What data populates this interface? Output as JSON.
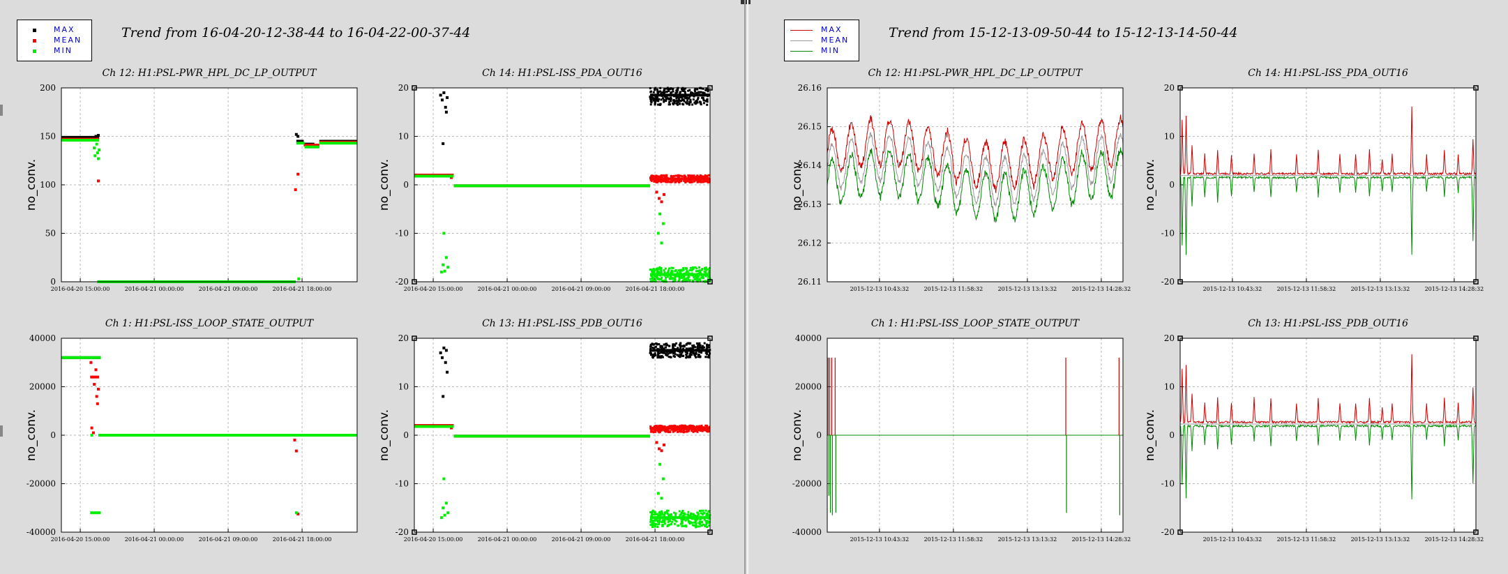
{
  "panels": [
    {
      "trend_title": "Trend from 16-04-20-12-38-44 to 16-04-22-00-37-44",
      "legend_style": "markers",
      "legend": [
        {
          "label": "MAX",
          "color": "#000000"
        },
        {
          "label": "MEAN",
          "color": "#ff0000"
        },
        {
          "label": "MIN",
          "color": "#00ee00"
        }
      ]
    },
    {
      "trend_title": "Trend from 15-12-13-09-50-44 to 15-12-13-14-50-44",
      "legend_style": "lines",
      "legend": [
        {
          "label": "MAX",
          "color": "#cc0000"
        },
        {
          "label": "MEAN",
          "color": "#999999"
        },
        {
          "label": "MIN",
          "color": "#008800"
        }
      ]
    }
  ],
  "chart_data": [
    {
      "panel": 0,
      "type": "scatter",
      "title": "Ch 12: H1:PSL-PWR_HPL_DC_LP_OUTPUT",
      "ylabel": "no_conv.",
      "ylim": [
        0,
        200
      ],
      "yticks": [
        "0",
        "50",
        "100",
        "150",
        "200"
      ],
      "xlim": [
        0,
        36
      ],
      "xticks": [
        "2016-04-20 15:00:00",
        "2016-04-21 00:00:00",
        "2016-04-21 09:00:00",
        "2016-04-21 18:00:00"
      ],
      "xtick_pos": [
        2.3,
        11.3,
        20.3,
        29.3
      ],
      "grid": true,
      "series": [
        {
          "color": "#000000",
          "segments": [
            [
              0,
              4.7,
              148
            ],
            [
              4.7,
              36,
              null
            ]
          ],
          "points": [
            [
              4.2,
              150
            ],
            [
              4.3,
              149
            ],
            [
              4.5,
              151
            ],
            [
              28.6,
              152
            ],
            [
              28.8,
              150
            ]
          ],
          "runs": [
            [
              0,
              4.6,
              149
            ],
            [
              28.6,
              29.5,
              145
            ],
            [
              29.5,
              30.8,
              142
            ],
            [
              30.8,
              31.4,
              140
            ],
            [
              31.4,
              36,
              145
            ],
            [
              4.4,
              28.5,
              0
            ]
          ]
        },
        {
          "color": "#ff0000",
          "points": [
            [
              4.5,
              104
            ],
            [
              28.5,
              95
            ],
            [
              28.8,
              111
            ]
          ],
          "runs": [
            [
              0,
              4.6,
              147
            ],
            [
              29.5,
              31.4,
              141
            ],
            [
              31.4,
              36,
              144
            ],
            [
              4.4,
              28.5,
              0
            ]
          ]
        },
        {
          "color": "#00ee00",
          "points": [
            [
              4.0,
              138
            ],
            [
              4.1,
              130
            ],
            [
              4.3,
              142
            ],
            [
              4.4,
              133
            ],
            [
              4.5,
              127
            ],
            [
              4.6,
              136
            ],
            [
              28.9,
              3
            ]
          ],
          "runs": [
            [
              0,
              4.6,
              146
            ],
            [
              28.6,
              29.6,
              143
            ],
            [
              29.6,
              31.4,
              139
            ],
            [
              31.4,
              36,
              143
            ],
            [
              4.4,
              28.5,
              0
            ]
          ]
        }
      ]
    },
    {
      "panel": 0,
      "type": "scatter",
      "title": "Ch 14: H1:PSL-ISS_PDA_OUT16",
      "ylabel": "no_conv.",
      "ylim": [
        -20,
        20
      ],
      "yticks": [
        "-20",
        "-10",
        "0",
        "10",
        "20"
      ],
      "xlim": [
        0,
        36
      ],
      "xticks": [
        "2016-04-20 15:00:00",
        "2016-04-21 00:00:00",
        "2016-04-21 09:00:00",
        "2016-04-21 18:00:00"
      ],
      "xtick_pos": [
        2.3,
        11.3,
        20.3,
        29.3
      ],
      "grid": true,
      "series": [
        {
          "color": "#000000",
          "points": [
            [
              3.2,
              18.5
            ],
            [
              3.4,
              17.5
            ],
            [
              3.6,
              19
            ],
            [
              3.8,
              16
            ],
            [
              4.0,
              18
            ],
            [
              3.5,
              8.5
            ],
            [
              3.9,
              15
            ]
          ],
          "runs": [
            [
              0,
              4.8,
              2
            ],
            [
              4.8,
              28.7,
              -0.2
            ],
            [
              28.7,
              36,
              18.5
            ]
          ],
          "band": [
            [
              28.7,
              36,
              16.5,
              20
            ]
          ]
        },
        {
          "color": "#ff0000",
          "points": [
            [
              4.5,
              1.5
            ],
            [
              29.5,
              -1.5
            ],
            [
              29.8,
              -2.8
            ],
            [
              30.1,
              -3.5
            ],
            [
              30.4,
              -2
            ]
          ],
          "runs": [
            [
              0,
              4.8,
              2
            ],
            [
              4.8,
              28.7,
              -0.2
            ],
            [
              28.7,
              36,
              1.2
            ]
          ],
          "band": [
            [
              28.7,
              36,
              0.5,
              2
            ]
          ]
        },
        {
          "color": "#00ee00",
          "points": [
            [
              3.3,
              -18
            ],
            [
              3.5,
              -16.5
            ],
            [
              3.7,
              -17.8
            ],
            [
              3.9,
              -15
            ],
            [
              3.6,
              -10
            ],
            [
              4.1,
              -17
            ],
            [
              29.7,
              -10
            ],
            [
              29.9,
              -6
            ],
            [
              30.1,
              -12
            ],
            [
              30.3,
              -8
            ]
          ],
          "runs": [
            [
              0,
              4.8,
              1.8
            ],
            [
              4.8,
              28.7,
              -0.2
            ],
            [
              28.7,
              36,
              -18.5
            ]
          ],
          "band": [
            [
              28.7,
              36,
              -20,
              -17
            ]
          ]
        }
      ]
    },
    {
      "panel": 0,
      "type": "scatter",
      "title": "Ch 1: H1:PSL-ISS_LOOP_STATE_OUTPUT",
      "ylabel": "no_conv.",
      "ylim": [
        -40000,
        40000
      ],
      "yticks": [
        "-40000",
        "-20000",
        "0",
        "20000",
        "40000"
      ],
      "xlim": [
        0,
        36
      ],
      "xticks": [
        "2016-04-20 15:00:00",
        "2016-04-21 00:00:00",
        "2016-04-21 09:00:00",
        "2016-04-21 18:00:00"
      ],
      "xtick_pos": [
        2.3,
        11.3,
        20.3,
        29.3
      ],
      "grid": true,
      "series": [
        {
          "color": "#000000",
          "points": [],
          "runs": [
            [
              0,
              4.8,
              32000
            ]
          ]
        },
        {
          "color": "#ff0000",
          "points": [
            [
              3.6,
              30000
            ],
            [
              3.8,
              24000
            ],
            [
              4.0,
              21000
            ],
            [
              4.2,
              27000
            ],
            [
              4.3,
              16000
            ],
            [
              4.5,
              19000
            ],
            [
              4.4,
              13000
            ],
            [
              3.7,
              3000
            ],
            [
              3.9,
              1000
            ],
            [
              28.4,
              -2000
            ],
            [
              28.6,
              -6500
            ],
            [
              28.8,
              -32500
            ]
          ],
          "runs": [
            [
              3.5,
              4.6,
              24000
            ]
          ]
        },
        {
          "color": "#00ee00",
          "points": [
            [
              3.7,
              0
            ],
            [
              28.6,
              -32000
            ]
          ],
          "runs": [
            [
              0,
              4.8,
              32000
            ],
            [
              3.5,
              4.8,
              -32000
            ],
            [
              4.5,
              36,
              0
            ]
          ]
        }
      ]
    },
    {
      "panel": 0,
      "type": "scatter",
      "title": "Ch 13: H1:PSL-ISS_PDB_OUT16",
      "ylabel": "no_conv.",
      "ylim": [
        -20,
        20
      ],
      "yticks": [
        "-20",
        "-10",
        "0",
        "10",
        "20"
      ],
      "xlim": [
        0,
        36
      ],
      "xticks": [
        "2016-04-20 15:00:00",
        "2016-04-21 00:00:00",
        "2016-04-21 09:00:00",
        "2016-04-21 18:00:00"
      ],
      "xtick_pos": [
        2.3,
        11.3,
        20.3,
        29.3
      ],
      "grid": true,
      "series": [
        {
          "color": "#000000",
          "points": [
            [
              3.2,
              17
            ],
            [
              3.4,
              16
            ],
            [
              3.6,
              18
            ],
            [
              3.8,
              15
            ],
            [
              3.5,
              8
            ],
            [
              4.0,
              13
            ],
            [
              3.9,
              17.5
            ]
          ],
          "runs": [
            [
              0,
              4.8,
              2
            ],
            [
              4.8,
              28.7,
              -0.2
            ],
            [
              28.7,
              36,
              17.5
            ]
          ],
          "band": [
            [
              28.7,
              36,
              16,
              19
            ]
          ]
        },
        {
          "color": "#ff0000",
          "points": [
            [
              4.5,
              1.5
            ],
            [
              29.5,
              -1.5
            ],
            [
              29.8,
              -2.8
            ],
            [
              30.1,
              -3.2
            ],
            [
              30.4,
              -2
            ]
          ],
          "runs": [
            [
              0,
              4.8,
              2
            ],
            [
              4.8,
              28.7,
              -0.2
            ],
            [
              28.7,
              36,
              1.4
            ]
          ],
          "band": [
            [
              28.7,
              36,
              0.6,
              2
            ]
          ]
        },
        {
          "color": "#00ee00",
          "points": [
            [
              3.3,
              -17
            ],
            [
              3.5,
              -15
            ],
            [
              3.7,
              -16.5
            ],
            [
              3.9,
              -14
            ],
            [
              3.6,
              -9
            ],
            [
              4.1,
              -16
            ],
            [
              29.7,
              -12
            ],
            [
              29.9,
              -6
            ],
            [
              30.1,
              -13
            ],
            [
              30.3,
              -9
            ]
          ],
          "runs": [
            [
              0,
              4.8,
              1.8
            ],
            [
              4.8,
              28.7,
              -0.2
            ],
            [
              28.7,
              36,
              -17
            ]
          ],
          "band": [
            [
              28.7,
              36,
              -19,
              -15.5
            ]
          ]
        }
      ]
    },
    {
      "panel": 1,
      "type": "line",
      "title": "Ch 12: H1:PSL-PWR_HPL_DC_LP_OUTPUT",
      "ylabel": "no_conv.",
      "ylim": [
        26.11,
        26.16
      ],
      "yticks": [
        "26.11",
        "26.12",
        "26.13",
        "26.14",
        "26.15",
        "26.16"
      ],
      "xlim": [
        0,
        300
      ],
      "xticks": [
        "2015-12-13 10:43:32",
        "2015-12-13 11:58:32",
        "2015-12-13 13:13:32",
        "2015-12-13 14:28:32"
      ],
      "xtick_pos": [
        53,
        128,
        203,
        278
      ],
      "grid": true,
      "wave": {
        "kind": "oscillation",
        "base": 26.139,
        "amp": 0.006,
        "period": 19.5,
        "spread": 0.004,
        "noise": 0.0015
      }
    },
    {
      "panel": 1,
      "type": "line",
      "title": "Ch 14: H1:PSL-ISS_PDA_OUT16",
      "ylabel": "no_conv.",
      "ylim": [
        -20,
        20
      ],
      "yticks": [
        "-20",
        "-10",
        "0",
        "10",
        "20"
      ],
      "xlim": [
        0,
        300
      ],
      "xticks": [
        "2015-12-13 10:43:32",
        "2015-12-13 11:58:32",
        "2015-12-13 13:13:32",
        "2015-12-13 14:28:32"
      ],
      "xtick_pos": [
        53,
        128,
        203,
        278
      ],
      "grid": true,
      "wave": {
        "kind": "spiky",
        "base": 1.9,
        "spikes": [
          [
            2,
            11,
            -14
          ],
          [
            6,
            12,
            -16
          ],
          [
            12,
            6,
            -6
          ],
          [
            25,
            4,
            -4
          ],
          [
            38,
            5,
            -5
          ],
          [
            52,
            4,
            -4
          ],
          [
            75,
            4,
            -3
          ],
          [
            92,
            5,
            -4
          ],
          [
            118,
            4,
            -3
          ],
          [
            140,
            5,
            -4
          ],
          [
            162,
            4,
            -3
          ],
          [
            178,
            4,
            -3
          ],
          [
            192,
            5,
            -4
          ],
          [
            205,
            3,
            -3
          ],
          [
            215,
            4,
            -3
          ],
          [
            235,
            14,
            -16
          ],
          [
            250,
            4,
            -3
          ],
          [
            268,
            5,
            -4
          ],
          [
            282,
            4,
            -3
          ],
          [
            297,
            7,
            -13
          ]
        ]
      }
    },
    {
      "panel": 1,
      "type": "line",
      "title": "Ch 1: H1:PSL-ISS_LOOP_STATE_OUTPUT",
      "ylabel": "no_conv.",
      "ylim": [
        -40000,
        40000
      ],
      "yticks": [
        "-40000",
        "-20000",
        "0",
        "20000",
        "40000"
      ],
      "xlim": [
        0,
        300
      ],
      "xticks": [
        "2015-12-13 10:43:32",
        "2015-12-13 11:58:32",
        "2015-12-13 13:13:32",
        "2015-12-13 14:28:32"
      ],
      "xtick_pos": [
        53,
        128,
        203,
        278
      ],
      "grid": true,
      "wave": {
        "kind": "loop",
        "spikes": [
          [
            1,
            32000,
            -25000
          ],
          [
            2.5,
            32000,
            -32000
          ],
          [
            4.5,
            32000,
            -33000
          ],
          [
            8,
            32000,
            -32000
          ],
          [
            242,
            32000,
            -32000
          ],
          [
            296,
            32000,
            -33000
          ]
        ]
      }
    },
    {
      "panel": 1,
      "type": "line",
      "title": "Ch 13: H1:PSL-ISS_PDB_OUT16",
      "ylabel": "no_conv.",
      "ylim": [
        -20,
        20
      ],
      "yticks": [
        "-20",
        "-10",
        "0",
        "10",
        "20"
      ],
      "xlim": [
        0,
        300
      ],
      "xticks": [
        "2015-12-13 10:43:32",
        "2015-12-13 11:58:32",
        "2015-12-13 13:13:32",
        "2015-12-13 14:28:32"
      ],
      "xtick_pos": [
        53,
        128,
        203,
        278
      ],
      "grid": true,
      "wave": {
        "kind": "spiky",
        "base": 2.3,
        "spikes": [
          [
            2,
            11,
            -12
          ],
          [
            6,
            12,
            -15
          ],
          [
            12,
            6,
            -5
          ],
          [
            25,
            4,
            -4
          ],
          [
            38,
            5,
            -5
          ],
          [
            52,
            4,
            -4
          ],
          [
            75,
            5,
            -3
          ],
          [
            92,
            5,
            -4
          ],
          [
            118,
            4,
            -3
          ],
          [
            140,
            5,
            -4
          ],
          [
            162,
            4,
            -3
          ],
          [
            178,
            4,
            -3
          ],
          [
            192,
            5,
            -4
          ],
          [
            205,
            3,
            -3
          ],
          [
            215,
            4,
            -3
          ],
          [
            235,
            14,
            -15
          ],
          [
            250,
            4,
            -3
          ],
          [
            268,
            5,
            -4
          ],
          [
            282,
            4,
            -3
          ],
          [
            297,
            7,
            -12
          ]
        ]
      }
    }
  ]
}
